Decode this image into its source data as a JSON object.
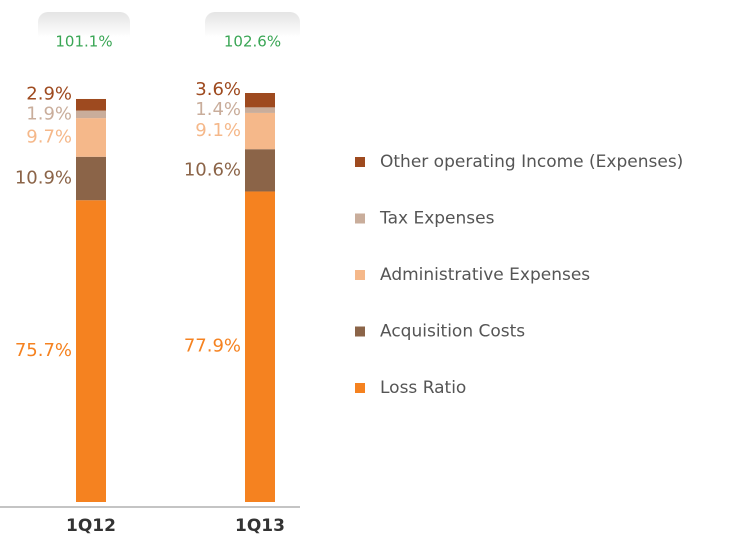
{
  "chart_data": {
    "type": "stacked_bar",
    "categories": [
      "1Q12",
      "1Q13"
    ],
    "totals": [
      101.1,
      102.6
    ],
    "total_labels": [
      "101.1%",
      "102.6%"
    ],
    "series": [
      {
        "name": "Loss Ratio",
        "color": "#f58220",
        "values": [
          75.7,
          77.9
        ],
        "value_labels": [
          "75.7%",
          "77.9%"
        ]
      },
      {
        "name": "Acquisition Costs",
        "color": "#8b6448",
        "values": [
          10.9,
          10.6
        ],
        "value_labels": [
          "10.9%",
          "10.6%"
        ]
      },
      {
        "name": "Administrative Expenses",
        "color": "#f5b88a",
        "values": [
          9.7,
          9.1
        ],
        "value_labels": [
          "9.7%",
          "9.1%"
        ]
      },
      {
        "name": "Tax Expenses",
        "color": "#c9ad9b",
        "values": [
          1.9,
          1.4
        ],
        "value_labels": [
          "1.9%",
          "1.4%"
        ]
      },
      {
        "name": "Other operating Income (Expenses)",
        "color": "#9e4a1f",
        "values": [
          2.9,
          3.6
        ],
        "value_labels": [
          "2.9%",
          "3.6%"
        ]
      }
    ]
  }
}
